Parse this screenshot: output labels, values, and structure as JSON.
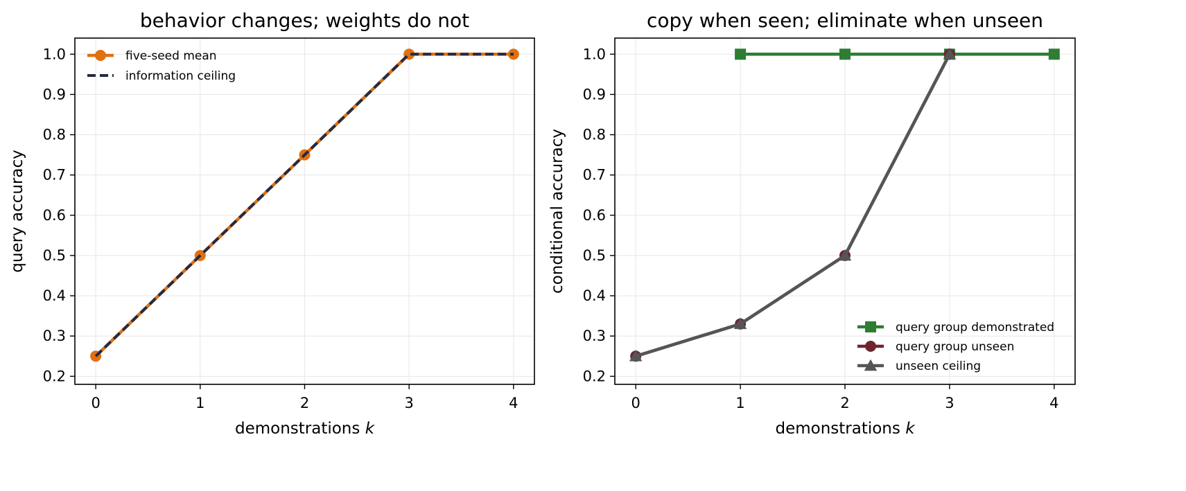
{
  "chart_data": [
    {
      "type": "line",
      "title": "behavior changes; weights do not",
      "xlabel": "demonstrations",
      "xlabel_var": "k",
      "ylabel": "query accuracy",
      "xlim": [
        -0.2,
        4.2
      ],
      "ylim": [
        0.18,
        1.04
      ],
      "x_ticks": [
        0,
        1,
        2,
        3,
        4
      ],
      "y_ticks": [
        "0.2",
        "0.3",
        "0.4",
        "0.5",
        "0.6",
        "0.7",
        "0.8",
        "0.9",
        "1.0"
      ],
      "grid": true,
      "legend_position": "upper-left",
      "series": [
        {
          "name": "five-seed mean",
          "x": [
            0,
            1,
            2,
            3,
            4
          ],
          "values": [
            0.25,
            0.5,
            0.75,
            1.0,
            1.0
          ],
          "color": "#e07010",
          "marker": "circle",
          "style": "solid"
        },
        {
          "name": "information ceiling",
          "x": [
            0,
            1,
            2,
            3,
            4
          ],
          "values": [
            0.25,
            0.5,
            0.75,
            1.0,
            1.0
          ],
          "color": "#232a45",
          "marker": "none",
          "style": "dashed"
        }
      ]
    },
    {
      "type": "line",
      "title": "copy when seen; eliminate when unseen",
      "xlabel": "demonstrations",
      "xlabel_var": "k",
      "ylabel": "conditional accuracy",
      "xlim": [
        -0.2,
        4.2
      ],
      "ylim": [
        0.18,
        1.04
      ],
      "x_ticks": [
        0,
        1,
        2,
        3,
        4
      ],
      "y_ticks": [
        "0.2",
        "0.3",
        "0.4",
        "0.5",
        "0.6",
        "0.7",
        "0.8",
        "0.9",
        "1.0"
      ],
      "grid": true,
      "legend_position": "lower-right",
      "series": [
        {
          "name": "query group demonstrated",
          "x": [
            1,
            2,
            3,
            4
          ],
          "values": [
            1.0,
            1.0,
            1.0,
            1.0
          ],
          "color": "#2e7d32",
          "marker": "square",
          "style": "solid"
        },
        {
          "name": "query group unseen",
          "x": [
            0,
            1,
            2,
            3
          ],
          "values": [
            0.25,
            0.33,
            0.5,
            1.0
          ],
          "color": "#6e2530",
          "marker": "circle",
          "style": "solid"
        },
        {
          "name": "unseen ceiling",
          "x": [
            0,
            1,
            2,
            3
          ],
          "values": [
            0.25,
            0.33,
            0.5,
            1.0
          ],
          "color": "#555555",
          "marker": "triangle",
          "style": "solid"
        }
      ]
    }
  ]
}
